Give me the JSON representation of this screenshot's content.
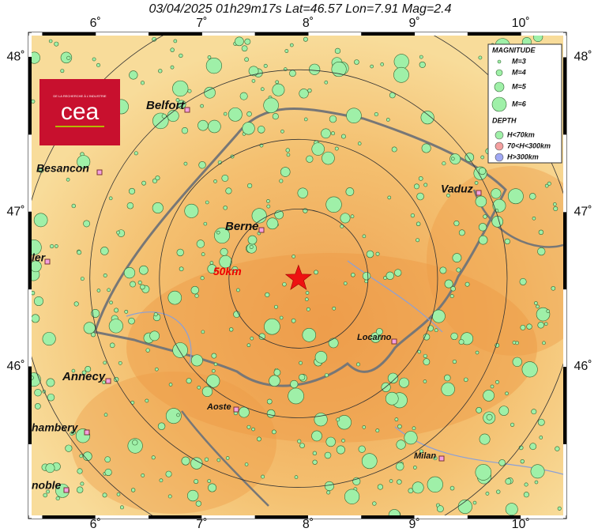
{
  "title": "03/04/2025 01h29m17s   Lat=46.57  Lon=7.91  Mag=2.4",
  "map": {
    "xlim": [
      5.4,
      10.4
    ],
    "ylim": [
      45.04,
      48.14
    ],
    "xticks": [
      {
        "value": 6,
        "label": "6˚"
      },
      {
        "value": 7,
        "label": "7˚"
      },
      {
        "value": 8,
        "label": "8˚"
      },
      {
        "value": 9,
        "label": "9˚"
      },
      {
        "value": 10,
        "label": "10˚"
      }
    ],
    "yticks": [
      {
        "value": 46,
        "label": "46˚"
      },
      {
        "value": 47,
        "label": "47˚"
      },
      {
        "value": 48,
        "label": "48˚"
      }
    ],
    "epicenter": {
      "lat": 46.57,
      "lon": 7.91
    },
    "ring_label": "50km",
    "cities": [
      "Belfort",
      "Besancon",
      "Berne",
      "Vaduz",
      "ler",
      "Locarno",
      "Annecy",
      "Aoste",
      "hambery",
      "Milan",
      "noble"
    ]
  },
  "legend": {
    "magnitude_title": "MAGNITUDE",
    "magnitudes": [
      "M=3",
      "M=4",
      "M=5",
      "M=6"
    ],
    "depth_title": "DEPTH",
    "depths": [
      "H<70km",
      "70<H<300km",
      "H>300km"
    ]
  },
  "logo": {
    "tagline": "DE LA RECHERCHE À L'INDUSTRIE",
    "name": "cea"
  }
}
